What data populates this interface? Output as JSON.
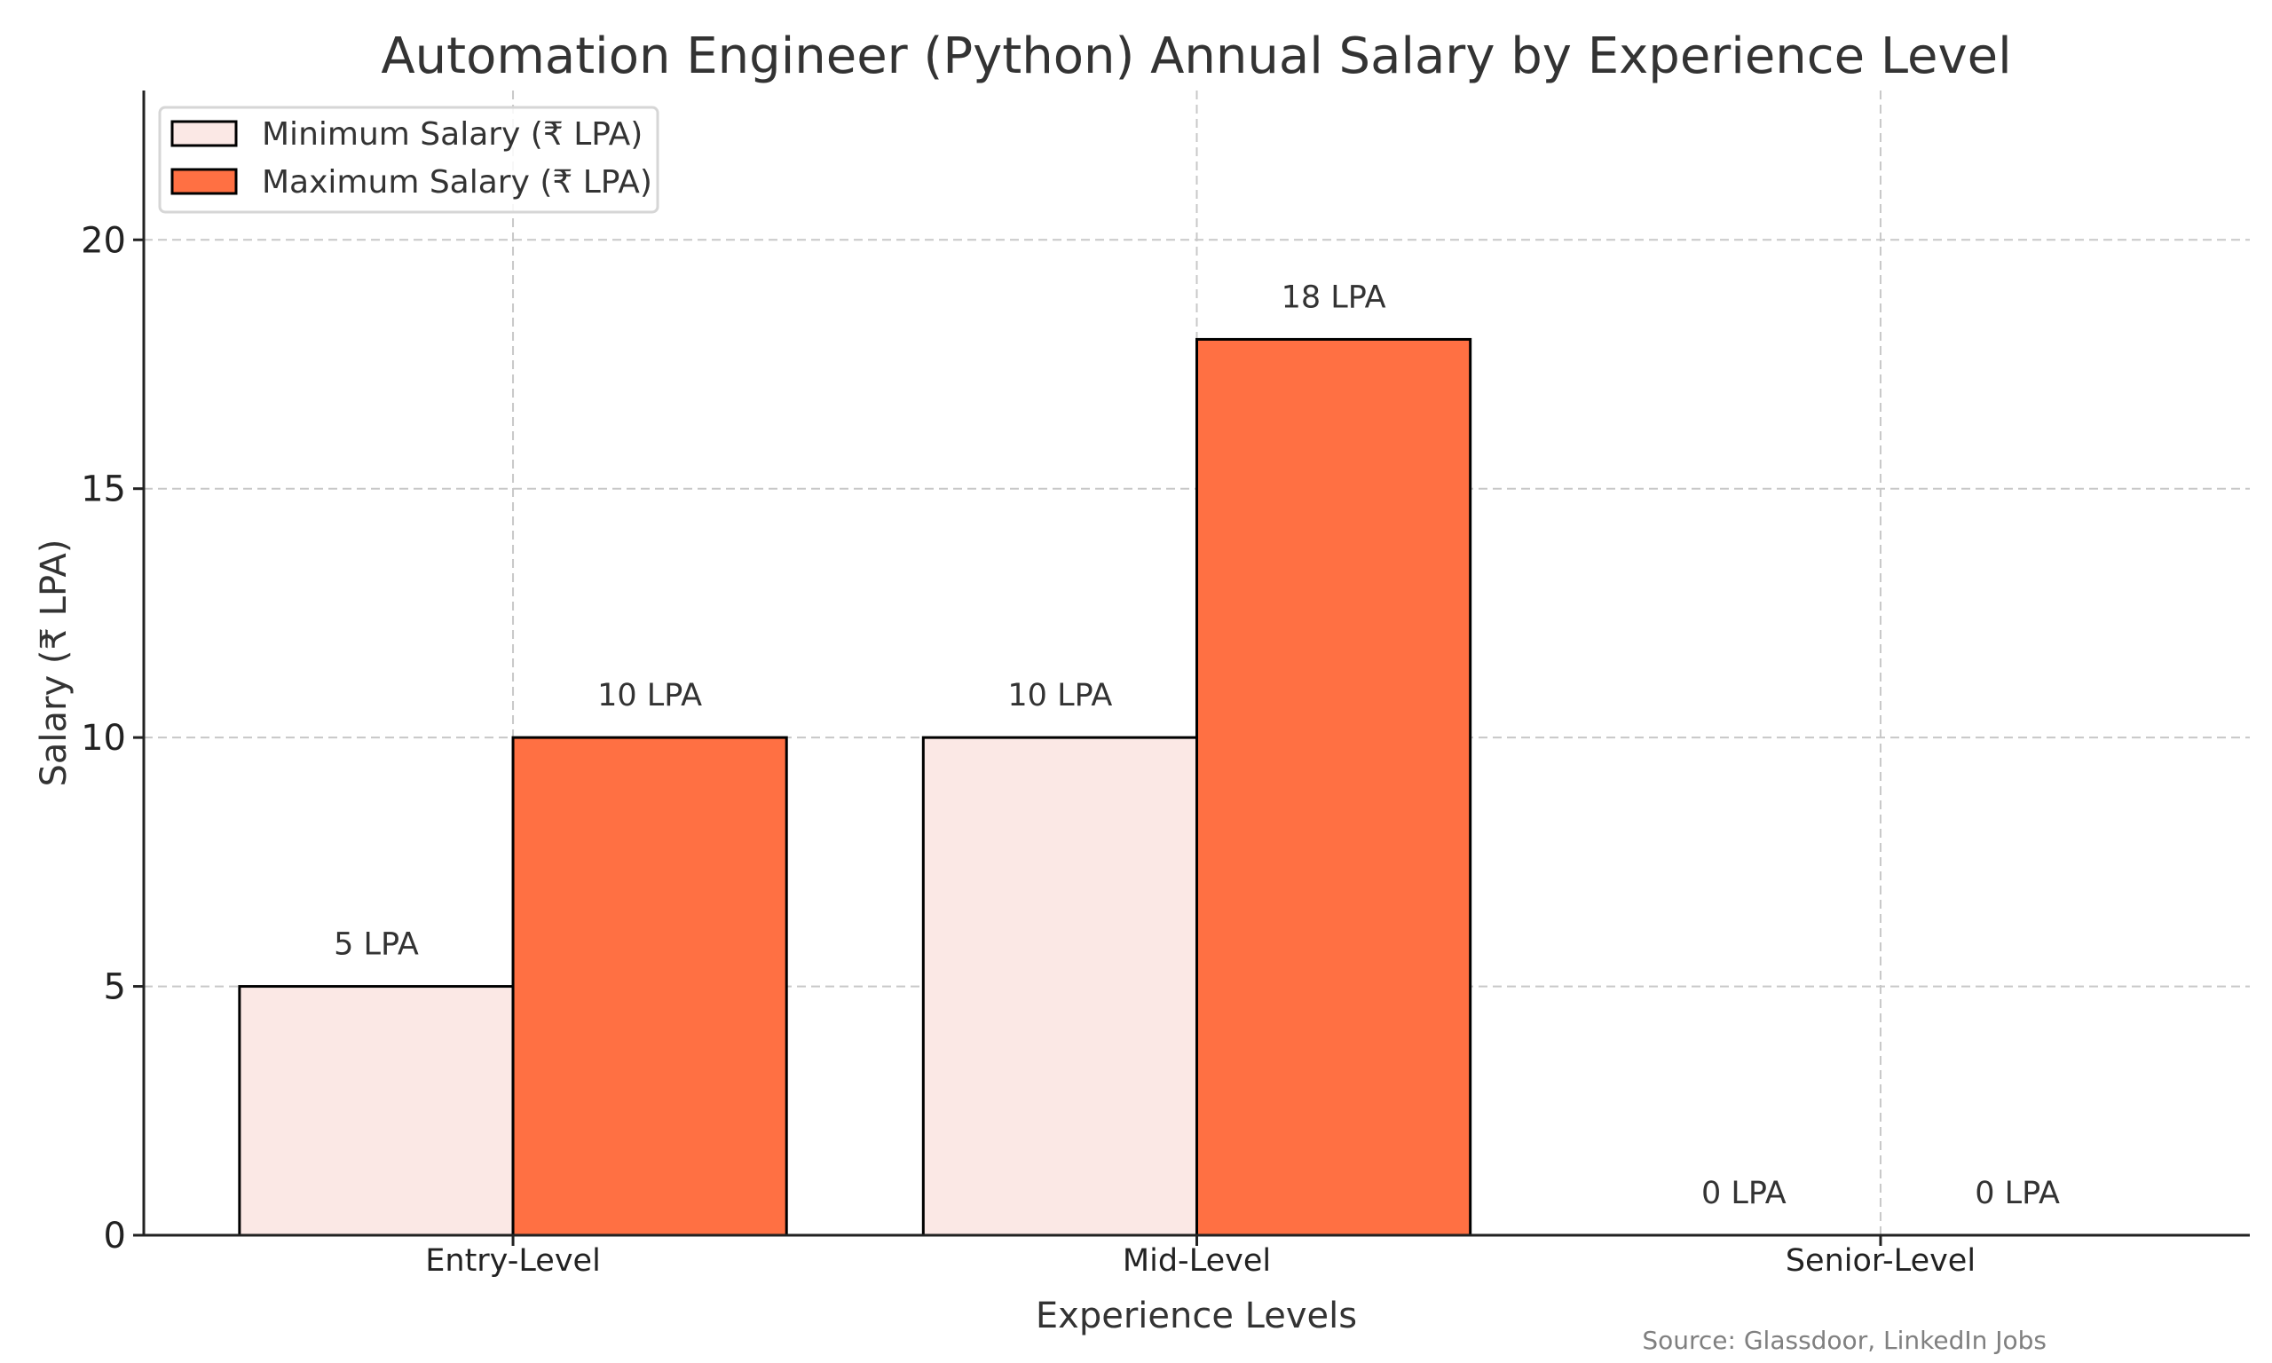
{
  "chart_data": {
    "type": "bar",
    "title": "Automation Engineer (Python) Annual Salary by Experience Level",
    "xlabel": "Experience Levels",
    "ylabel": "Salary (₹ LPA)",
    "categories": [
      "Entry-Level",
      "Mid-Level",
      "Senior-Level"
    ],
    "series": [
      {
        "name": "Minimum Salary (₹ LPA)",
        "values": [
          5,
          10,
          0
        ],
        "color": "#FBE8E5",
        "labels": [
          "5 LPA",
          "10 LPA",
          "0 LPA"
        ]
      },
      {
        "name": "Maximum Salary (₹ LPA)",
        "values": [
          10,
          18,
          0
        ],
        "color": "#FF7043",
        "labels": [
          "10 LPA",
          "18 LPA",
          "0 LPA"
        ]
      }
    ],
    "ylim": [
      0,
      23
    ],
    "yticks": [
      0,
      5,
      10,
      15,
      20
    ],
    "grid": true,
    "legend_position": "top-left",
    "edge_color": "#000000",
    "source_note": "Source: Glassdoor, LinkedIn Jobs"
  }
}
